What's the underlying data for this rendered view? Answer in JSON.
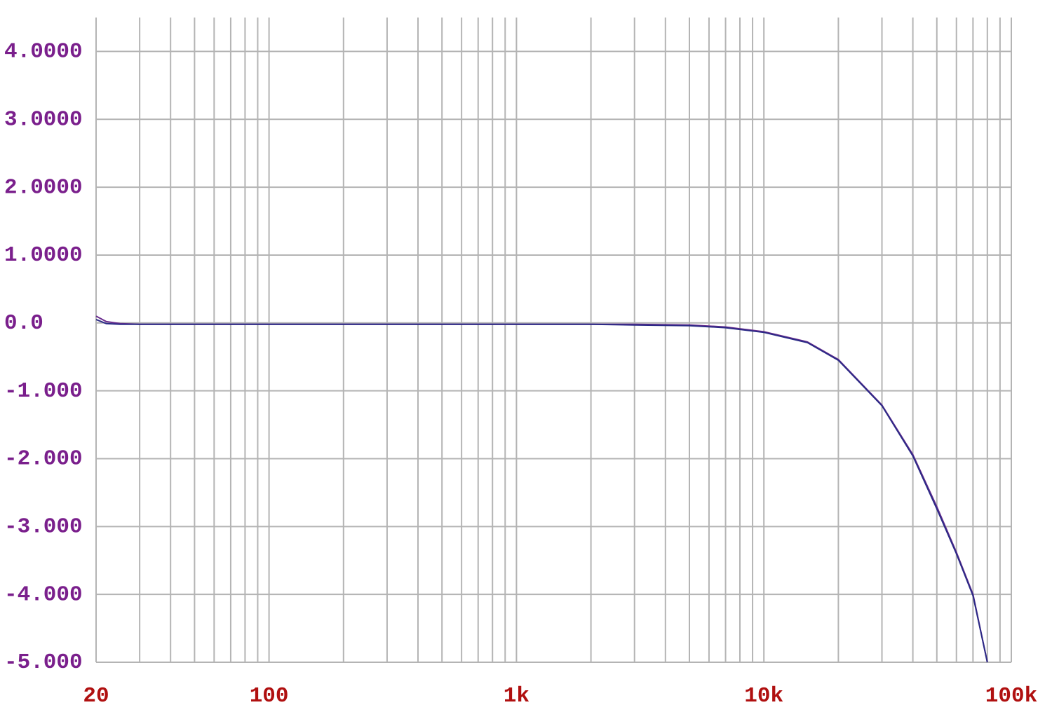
{
  "chart_data": {
    "type": "line",
    "x": [
      20,
      22,
      25,
      30,
      50,
      100,
      200,
      500,
      1000,
      2000,
      3000,
      5000,
      7000,
      10000,
      15000,
      20000,
      30000,
      40000,
      50000,
      60000,
      70000,
      80000
    ],
    "series": [
      {
        "color": "#6a2c8e",
        "values": [
          0.1,
          0.02,
          -0.01,
          -0.02,
          -0.02,
          -0.02,
          -0.02,
          -0.02,
          -0.02,
          -0.02,
          -0.02,
          -0.03,
          -0.06,
          -0.13,
          -0.28,
          -0.54,
          -1.21,
          -1.94,
          -2.71,
          -3.38,
          -4.0,
          -5.0
        ]
      },
      {
        "color": "#2b2a86",
        "values": [
          0.05,
          -0.01,
          -0.02,
          -0.02,
          -0.02,
          -0.02,
          -0.02,
          -0.02,
          -0.02,
          -0.02,
          -0.03,
          -0.04,
          -0.07,
          -0.14,
          -0.29,
          -0.55,
          -1.22,
          -1.96,
          -2.74,
          -3.4,
          -4.02,
          -5.0
        ]
      }
    ],
    "xscale": "log",
    "xlim": [
      20,
      100000
    ],
    "xticks": [
      20,
      100,
      {
        "value": 1000,
        "label": "1k"
      },
      {
        "value": 10000,
        "label": "10k"
      },
      {
        "value": 100000,
        "label": "100k"
      }
    ],
    "minor_xticks": [
      30,
      40,
      50,
      60,
      70,
      80,
      90,
      200,
      300,
      400,
      500,
      600,
      700,
      800,
      900,
      2000,
      3000,
      4000,
      5000,
      6000,
      7000,
      8000,
      9000,
      20000,
      30000,
      40000,
      50000,
      60000,
      70000,
      80000,
      90000
    ],
    "ylim": [
      -5,
      4.5
    ],
    "yticks": [
      {
        "value": 4,
        "label": "4.0000"
      },
      {
        "value": 3,
        "label": "3.0000"
      },
      {
        "value": 2,
        "label": "2.0000"
      },
      {
        "value": 1,
        "label": "1.0000"
      },
      {
        "value": 0,
        "label": "0.0"
      },
      {
        "value": -1,
        "label": "-1.000"
      },
      {
        "value": -2,
        "label": "-2.000"
      },
      {
        "value": -3,
        "label": "-3.000"
      },
      {
        "value": -4,
        "label": "-4.000"
      },
      {
        "value": -5,
        "label": "-5.000"
      }
    ],
    "grid": true
  }
}
